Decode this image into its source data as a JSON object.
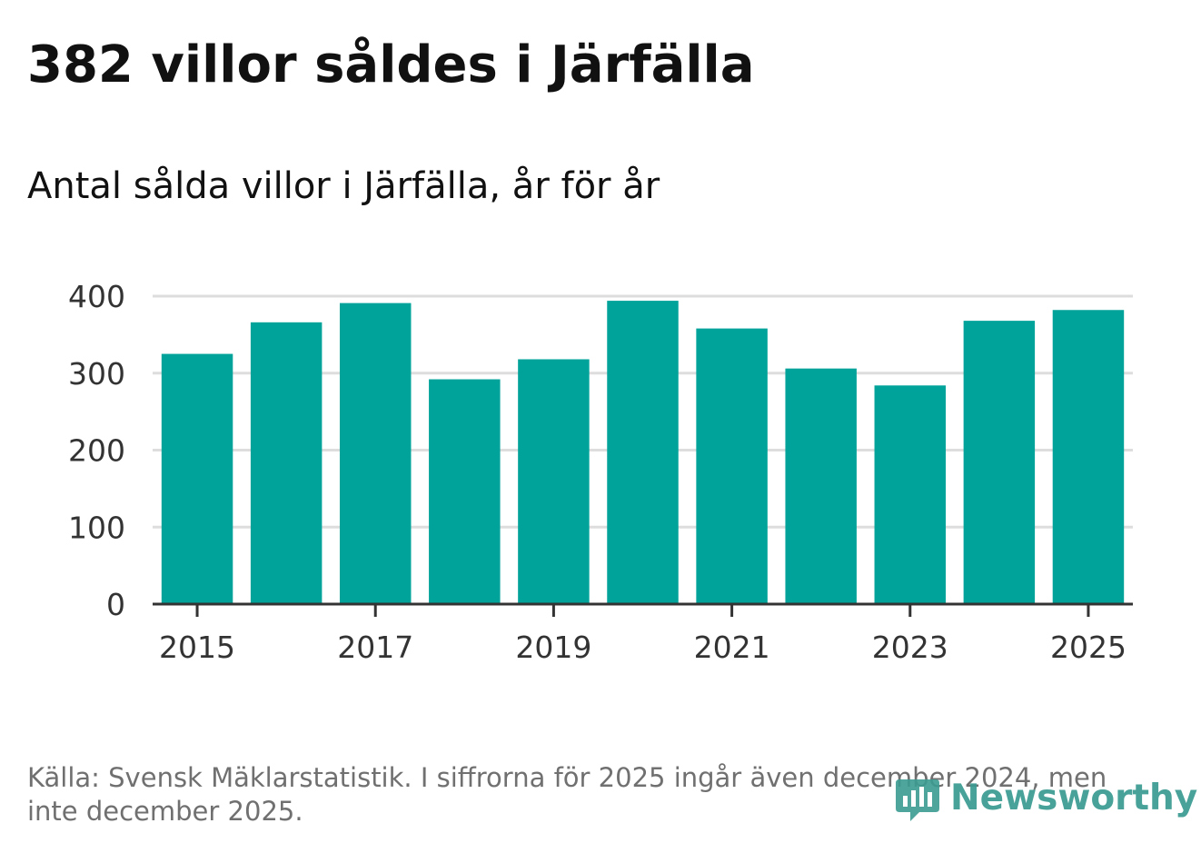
{
  "header": {
    "title": "382 villor såldes i Järfälla",
    "subtitle": "Antal sålda villor i Järfälla, år för år"
  },
  "chart_data": {
    "type": "bar",
    "title": "382 villor såldes i Järfälla",
    "subtitle": "Antal sålda villor i Järfälla, år för år",
    "categories": [
      "2015",
      "2016",
      "2017",
      "2018",
      "2019",
      "2020",
      "2021",
      "2022",
      "2023",
      "2024",
      "2025"
    ],
    "values": [
      325,
      366,
      391,
      292,
      318,
      394,
      358,
      306,
      284,
      368,
      382
    ],
    "x_tick_labels": [
      "2015",
      "2017",
      "2019",
      "2021",
      "2023",
      "2025"
    ],
    "y_ticks": [
      0,
      100,
      200,
      300,
      400
    ],
    "ylim": [
      0,
      400
    ],
    "xlabel": "",
    "ylabel": "",
    "grid": true,
    "bar_color": "#00a39a"
  },
  "footer": {
    "source": "Källa: Svensk Mäklarstatistik. I siffrorna för 2025 ingår även december 2024, men inte december 2025.",
    "brand": "Newsworthy",
    "brand_icon": "bar-chart-logo-icon",
    "brand_color": "#3a9b91"
  }
}
